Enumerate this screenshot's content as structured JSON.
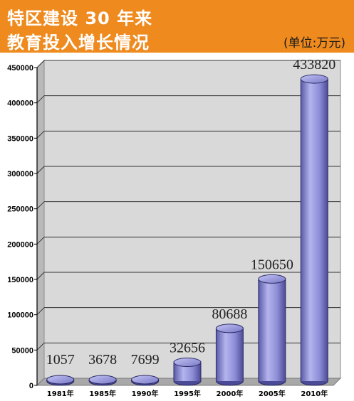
{
  "header": {
    "title_line1": "特区建设 30 年来",
    "title_line2": "教育投入增长情况",
    "unit": "(单位:万元)"
  },
  "colors": {
    "header_bg": "#ee8a1e",
    "bar_fill": "#8c8cd6",
    "plot_bg": "#d9d9d9"
  },
  "chart_data": {
    "type": "bar",
    "style": "3d-cylinder",
    "categories": [
      "1981年",
      "1985年",
      "1990年",
      "1995年",
      "2000年",
      "2005年",
      "2010年"
    ],
    "values": [
      1057,
      3678,
      7699,
      32656,
      80688,
      150650,
      433820
    ],
    "data_labels": [
      "1057",
      "3678",
      "7699",
      "32656",
      "80688",
      "150650",
      "433820"
    ],
    "ylim": [
      0,
      450000
    ],
    "yticks": [
      "0",
      "50000",
      "100000",
      "150000",
      "200000",
      "250000",
      "300000",
      "350000",
      "400000",
      "450000"
    ],
    "grid": true
  }
}
